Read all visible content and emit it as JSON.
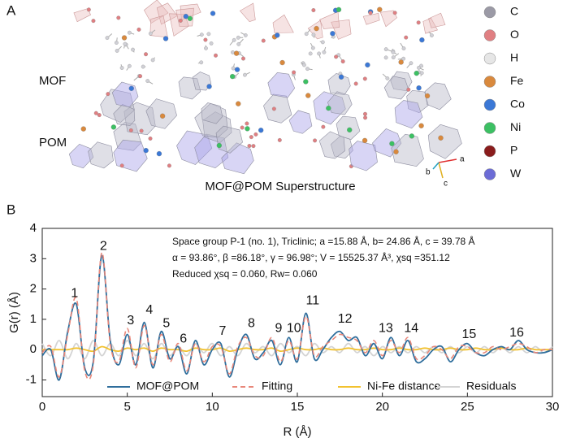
{
  "panel_a": {
    "label": "A",
    "mof_label": "MOF",
    "pom_label": "POM",
    "caption": "MOF@POM Superstructure",
    "axes": [
      "a",
      "b",
      "c"
    ],
    "elements": [
      {
        "name": "C",
        "color": "#9b9aa6"
      },
      {
        "name": "O",
        "color": "#e07f82"
      },
      {
        "name": "H",
        "color": "#e6e6e6"
      },
      {
        "name": "Fe",
        "color": "#d9893d"
      },
      {
        "name": "Co",
        "color": "#3b78d6"
      },
      {
        "name": "Ni",
        "color": "#3cc063"
      },
      {
        "name": "P",
        "color": "#8a1c1c"
      },
      {
        "name": "W",
        "color": "#6c6cd6"
      }
    ]
  },
  "chart_data": {
    "type": "line",
    "panel_label": "B",
    "x_label": "R (Å)",
    "y_label": "G(r) (Å)",
    "info": [
      "Space group P-1 (no. 1), Triclinic; a =15.88 Å, b= 24.86 Å, c = 39.78 Å",
      "α = 93.86°, β =86.18°, γ = 96.98°; V = 15525.37 Å³, χsq =351.12",
      "Reduced χsq = 0.060, Rw= 0.060"
    ],
    "xlim": [
      0,
      30
    ],
    "xticks": [
      0,
      5,
      10,
      15,
      20,
      25,
      30
    ],
    "ylim": [
      -1.55,
      4
    ],
    "yticks": [
      -1,
      0,
      1,
      2,
      3,
      4
    ],
    "x": [
      0,
      0.5,
      1,
      1.5,
      2,
      2.5,
      3,
      3.5,
      4,
      4.5,
      5,
      5.5,
      6,
      6.5,
      7,
      7.5,
      8,
      8.5,
      9,
      9.5,
      10,
      10.5,
      11,
      11.5,
      12,
      12.5,
      13,
      13.5,
      14,
      14.5,
      15,
      15.5,
      16,
      16.5,
      17,
      17.5,
      18,
      18.5,
      19,
      19.5,
      20,
      20.5,
      21,
      21.5,
      22,
      22.5,
      23,
      23.5,
      24,
      24.5,
      25,
      25.5,
      26,
      26.5,
      27,
      27.5,
      28,
      28.5,
      29,
      29.5,
      30
    ],
    "series": [
      {
        "name": "Residuals",
        "color": "#d4d4d4",
        "style": "solid",
        "values": [
          0.2,
          -0.2,
          0.3,
          -0.3,
          0.2,
          -0.3,
          0.3,
          -0.2,
          0.2,
          -0.2,
          0.3,
          -0.2,
          0.2,
          -0.3,
          0.2,
          -0.2,
          0.1,
          -0.2,
          0.2,
          -0.1,
          0.2,
          -0.2,
          0.1,
          -0.2,
          0.2,
          -0.1,
          0.1,
          -0.2,
          0.2,
          -0.1,
          0.1,
          -0.2,
          0.2,
          -0.1,
          0.1,
          -0.1,
          0.2,
          -0.1,
          0.1,
          -0.2,
          0.1,
          -0.1,
          0.1,
          -0.1,
          0.1,
          -0.1,
          0.1,
          -0.1,
          0.1,
          -0.1,
          0.1,
          -0.1,
          0.1,
          -0.1,
          0.1,
          -0.1,
          0.1,
          -0.1,
          0.1,
          -0.1,
          0.1
        ]
      },
      {
        "name": "Ni-Fe distance",
        "color": "#f2c230",
        "style": "solid",
        "values": [
          0,
          0,
          0,
          0,
          0.05,
          0,
          -0.05,
          0.1,
          0,
          -0.05,
          0.05,
          0,
          0.05,
          -0.05,
          0.05,
          0,
          0,
          -0.05,
          0.05,
          0,
          0,
          0.05,
          -0.05,
          0,
          0.05,
          0,
          0,
          0.05,
          -0.05,
          0,
          0.05,
          0,
          0,
          0.05,
          0,
          0,
          0.05,
          0,
          0,
          0.05,
          0,
          0,
          0.05,
          0,
          0,
          0.05,
          0,
          0,
          0.05,
          0,
          0,
          0.05,
          0,
          0,
          0.05,
          0,
          0,
          0.05,
          0,
          0,
          0
        ]
      },
      {
        "name": "MOF@POM",
        "color": "#2f6e9c",
        "style": "solid",
        "values": [
          -0.2,
          0.0,
          -1.0,
          0.6,
          1.5,
          -0.6,
          -0.4,
          3.1,
          0.3,
          -0.5,
          0.5,
          -0.5,
          0.9,
          -0.6,
          0.6,
          -0.3,
          0.1,
          -0.8,
          0.3,
          -0.5,
          0.0,
          0.2,
          -0.9,
          0.0,
          0.5,
          -0.3,
          -0.1,
          0.3,
          -0.5,
          0.4,
          -0.4,
          1.2,
          -0.3,
          0.0,
          0.4,
          0.6,
          0.3,
          0.4,
          -0.2,
          0.2,
          -0.3,
          0.4,
          -0.2,
          0.3,
          -0.4,
          -0.3,
          0.0,
          0.1,
          -0.4,
          0.0,
          0.2,
          -0.1,
          -0.2,
          0.0,
          0.1,
          0.0,
          0.3,
          0.0,
          -0.1,
          -0.1,
          0.0
        ]
      },
      {
        "name": "Fitting",
        "color": "#e8877a",
        "style": "dashed",
        "values": [
          -0.1,
          0.1,
          -0.9,
          0.5,
          1.7,
          -0.7,
          -0.5,
          3.2,
          0.2,
          -0.4,
          0.7,
          -0.6,
          0.8,
          -0.5,
          0.5,
          -0.4,
          0.2,
          -0.7,
          0.2,
          -0.4,
          0.1,
          0.1,
          -0.8,
          0.1,
          0.4,
          -0.2,
          -0.2,
          0.4,
          -0.4,
          0.3,
          -0.3,
          1.1,
          -0.2,
          0.1,
          0.3,
          0.5,
          0.4,
          0.3,
          -0.1,
          0.3,
          -0.2,
          0.3,
          -0.1,
          0.4,
          -0.3,
          -0.2,
          0.1,
          0.0,
          -0.3,
          0.1,
          0.1,
          -0.1,
          -0.1,
          0.1,
          0.0,
          0.1,
          0.2,
          0.1,
          -0.1,
          0.0,
          0.0
        ]
      }
    ],
    "legend_order": [
      2,
      3,
      1,
      0
    ],
    "annotations": [
      {
        "text": "1",
        "x": 1.9,
        "y": 1.85
      },
      {
        "text": "2",
        "x": 3.6,
        "y": 3.4
      },
      {
        "text": "3",
        "x": 5.2,
        "y": 0.95
      },
      {
        "text": "4",
        "x": 6.3,
        "y": 1.3
      },
      {
        "text": "5",
        "x": 7.3,
        "y": 0.85
      },
      {
        "text": "6",
        "x": 8.3,
        "y": 0.35
      },
      {
        "text": "7",
        "x": 10.6,
        "y": 0.6
      },
      {
        "text": "8",
        "x": 12.3,
        "y": 0.85
      },
      {
        "text": "9",
        "x": 13.9,
        "y": 0.7
      },
      {
        "text": "10",
        "x": 14.8,
        "y": 0.7
      },
      {
        "text": "11",
        "x": 15.9,
        "y": 1.6
      },
      {
        "text": "12",
        "x": 17.8,
        "y": 1.0
      },
      {
        "text": "13",
        "x": 20.2,
        "y": 0.7
      },
      {
        "text": "14",
        "x": 21.7,
        "y": 0.7
      },
      {
        "text": "15",
        "x": 25.1,
        "y": 0.5
      },
      {
        "text": "16",
        "x": 27.9,
        "y": 0.55
      }
    ]
  }
}
